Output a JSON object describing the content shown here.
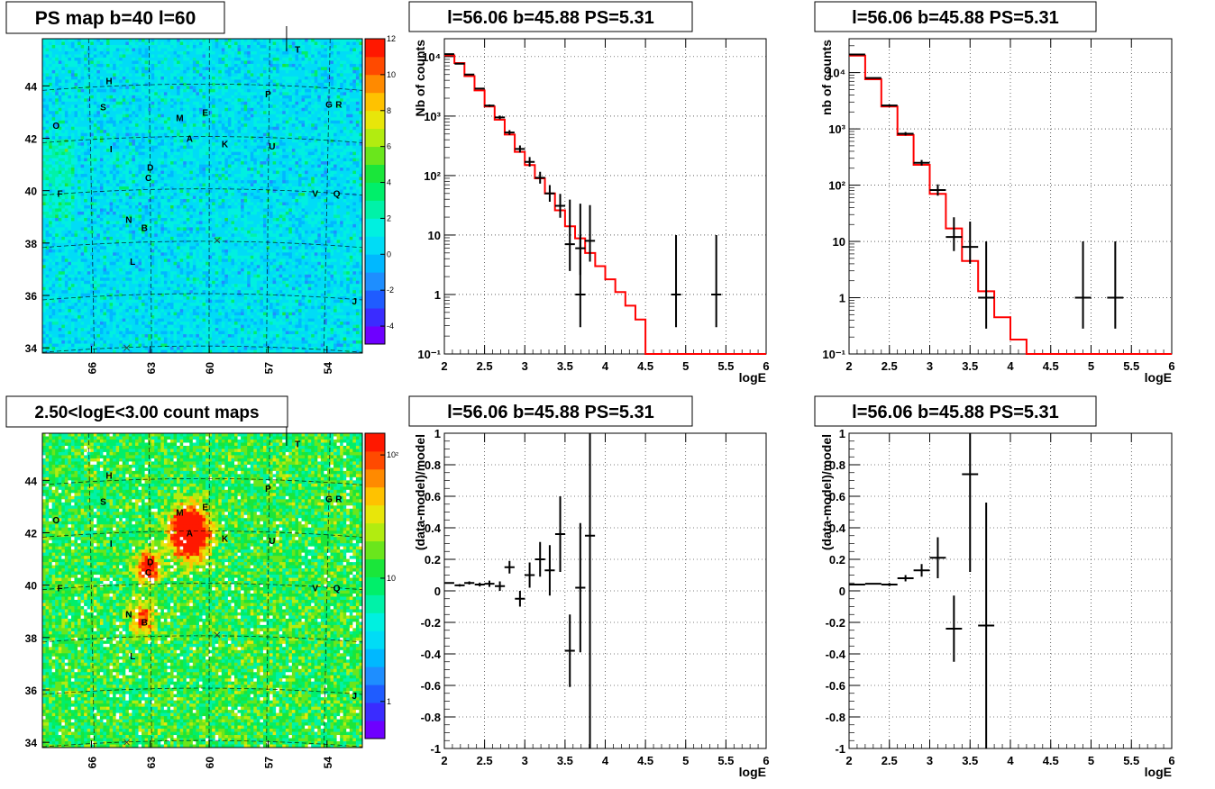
{
  "colors": {
    "map_bg": "#00e6f0",
    "frame": "#000000",
    "model_line": "#ff0000",
    "grid": "#000000",
    "palette": [
      "#6e00ff",
      "#3a2cff",
      "#1f5cff",
      "#1e8eff",
      "#00b8ff",
      "#00dcf6",
      "#00f0e0",
      "#00f2a8",
      "#00ef6a",
      "#1ae63a",
      "#6ae61c",
      "#b2ec10",
      "#e8e60a",
      "#ffc200",
      "#ff8a00",
      "#ff4a00",
      "#ff1800"
    ]
  },
  "panels": {
    "ps_map": {
      "title": "PS map b=40 l=60",
      "x_ticks": [
        "66",
        "63",
        "60",
        "57",
        "54"
      ],
      "y_ticks": [
        "44",
        "42",
        "40",
        "38",
        "36",
        "34"
      ],
      "colorbar_ticks": [
        "12",
        "10",
        "8",
        "6",
        "4",
        "2",
        "0",
        "-2",
        "-4"
      ],
      "colorbar_range": [
        -5,
        12
      ]
    },
    "count_map": {
      "title": "2.50<logE<3.00 count maps",
      "x_ticks": [
        "66",
        "63",
        "60",
        "57",
        "54"
      ],
      "y_ticks": [
        "44",
        "42",
        "40",
        "38",
        "36",
        "34"
      ],
      "colorbar_ticks": [
        "10²",
        "10",
        "1"
      ]
    },
    "map_sources": [
      {
        "label": "T",
        "l": 55.5,
        "b": 45.4
      },
      {
        "label": "H",
        "l": 65.1,
        "b": 44.2
      },
      {
        "label": "P",
        "l": 57.0,
        "b": 43.7
      },
      {
        "label": "S",
        "l": 65.4,
        "b": 43.2
      },
      {
        "label": "G",
        "l": 53.9,
        "b": 43.3
      },
      {
        "label": "R",
        "l": 53.4,
        "b": 43.3
      },
      {
        "label": "M",
        "l": 61.5,
        "b": 42.8
      },
      {
        "label": "E",
        "l": 60.2,
        "b": 43.0
      },
      {
        "label": "O",
        "l": 67.8,
        "b": 42.5
      },
      {
        "label": "A",
        "l": 61.0,
        "b": 42.0
      },
      {
        "label": "K",
        "l": 59.2,
        "b": 41.8
      },
      {
        "label": "U",
        "l": 56.8,
        "b": 41.7
      },
      {
        "label": "I",
        "l": 65.0,
        "b": 41.6
      },
      {
        "label": "D",
        "l": 63.0,
        "b": 40.9
      },
      {
        "label": "C",
        "l": 63.1,
        "b": 40.5
      },
      {
        "label": "F",
        "l": 67.6,
        "b": 39.9
      },
      {
        "label": "V",
        "l": 54.6,
        "b": 39.9
      },
      {
        "label": "Q",
        "l": 53.5,
        "b": 39.9
      },
      {
        "label": "N",
        "l": 64.1,
        "b": 38.9
      },
      {
        "label": "B",
        "l": 63.3,
        "b": 38.6
      },
      {
        "label": "L",
        "l": 63.9,
        "b": 37.3
      },
      {
        "label": "J",
        "l": 52.6,
        "b": 35.8
      }
    ],
    "bright_blobs": [
      {
        "l": 61.0,
        "b": 42.0,
        "amp": 1.0,
        "r": 0.9
      },
      {
        "l": 63.1,
        "b": 40.7,
        "amp": 0.55,
        "r": 0.6
      },
      {
        "l": 63.4,
        "b": 38.7,
        "amp": 0.45,
        "r": 0.6
      }
    ],
    "spectrum_1": {
      "title": "l=56.06 b=45.88 PS=5.31",
      "xlabel": "logE",
      "ylabel": "Nb of counts"
    },
    "spectrum_2": {
      "title": "l=56.06 b=45.88 PS=5.31",
      "xlabel": "logE",
      "ylabel": "nb of counts"
    },
    "residual_1": {
      "title": "l=56.06 b=45.88 PS=5.31",
      "xlabel": "logE",
      "ylabel": "(data-model)/model"
    },
    "residual_2": {
      "title": "l=56.06 b=45.88 PS=5.31",
      "xlabel": "logE",
      "ylabel": "(data-model)/model"
    }
  },
  "chart_data": [
    {
      "type": "heatmap",
      "title": "PS map b=40 l=60",
      "xlim": [
        68.5,
        52.2
      ],
      "ylim": [
        33.8,
        45.8
      ],
      "x_ticks": [
        66,
        63,
        60,
        57,
        54
      ],
      "y_ticks": [
        34,
        36,
        38,
        40,
        42,
        44
      ],
      "z_range": [
        -5,
        12
      ]
    },
    {
      "type": "heatmap",
      "title": "2.50<logE<3.00 count maps",
      "xlim": [
        68.5,
        52.2
      ],
      "ylim": [
        33.8,
        45.8
      ],
      "z_scale": "log",
      "z_range": [
        0.5,
        150
      ]
    },
    {
      "type": "line",
      "title": "l=56.06 b=45.88 PS=5.31",
      "xlabel": "logE",
      "ylabel": "Nb of counts",
      "yscale": "log",
      "xlim": [
        2,
        6
      ],
      "ylim": [
        0.1,
        20000
      ],
      "x_ticks": [
        2,
        2.5,
        3,
        3.5,
        4,
        4.5,
        5,
        5.5,
        6
      ],
      "y_ticks": [
        {
          "v": 0.1,
          "t": "10⁻¹"
        },
        {
          "v": 1,
          "t": "1"
        },
        {
          "v": 10,
          "t": "10"
        },
        {
          "v": 100,
          "t": "10²"
        },
        {
          "v": 1000,
          "t": "10³"
        },
        {
          "v": 10000,
          "t": "10⁴"
        }
      ],
      "bin_width": 0.125,
      "model_bins": [
        [
          2.0,
          10500
        ],
        [
          2.125,
          7800
        ],
        [
          2.25,
          4700
        ],
        [
          2.375,
          2700
        ],
        [
          2.5,
          1450
        ],
        [
          2.625,
          870
        ],
        [
          2.75,
          490
        ],
        [
          2.875,
          250
        ],
        [
          3.0,
          150
        ],
        [
          3.125,
          90
        ],
        [
          3.25,
          50
        ],
        [
          3.375,
          26
        ],
        [
          3.5,
          14
        ],
        [
          3.625,
          8.8
        ],
        [
          3.75,
          5
        ],
        [
          3.875,
          3
        ],
        [
          4.0,
          1.8
        ],
        [
          4.125,
          1.1
        ],
        [
          4.25,
          0.65
        ],
        [
          4.375,
          0.38
        ],
        [
          4.5,
          0.1
        ],
        [
          4.625,
          0.1
        ],
        [
          4.75,
          0.1
        ],
        [
          4.875,
          0.1
        ],
        [
          5.0,
          0.1
        ],
        [
          5.125,
          0.1
        ],
        [
          5.25,
          0.1
        ],
        [
          5.375,
          0.1
        ],
        [
          5.5,
          0.1
        ],
        [
          5.625,
          0.1
        ],
        [
          5.75,
          0.1
        ],
        [
          5.875,
          0.1
        ]
      ],
      "data_points": [
        [
          2.06,
          11000,
          0.01,
          0.01
        ],
        [
          2.19,
          7600,
          0.01,
          0.01
        ],
        [
          2.31,
          5000,
          0.01,
          0.01
        ],
        [
          2.44,
          2900,
          0.01,
          0.01
        ],
        [
          2.56,
          1500,
          0.02,
          0.02
        ],
        [
          2.69,
          950,
          0.03,
          0.03
        ],
        [
          2.81,
          530,
          0.04,
          0.04
        ],
        [
          2.94,
          280,
          0.06,
          0.06
        ],
        [
          3.06,
          170,
          0.08,
          0.08
        ],
        [
          3.19,
          92,
          0.1,
          0.1
        ],
        [
          3.31,
          50,
          0.14,
          0.14
        ],
        [
          3.44,
          31,
          0.2,
          0.2
        ],
        [
          3.56,
          7,
          0.45,
          0.75
        ],
        [
          3.69,
          6,
          0.45,
          0.75
        ],
        [
          3.81,
          8,
          0.35,
          0.6
        ],
        [
          3.69,
          1,
          0.55,
          1.0
        ],
        [
          4.88,
          1,
          0.55,
          1.0
        ],
        [
          5.38,
          1,
          0.55,
          1.0
        ]
      ]
    },
    {
      "type": "line",
      "title": "l=56.06 b=45.88 PS=5.31",
      "xlabel": "logE",
      "ylabel": "nb of counts",
      "yscale": "log",
      "xlim": [
        2,
        6
      ],
      "ylim": [
        0.1,
        40000
      ],
      "x_ticks": [
        2,
        2.5,
        3,
        3.5,
        4,
        4.5,
        5,
        5.5,
        6
      ],
      "y_ticks": [
        {
          "v": 0.1,
          "t": "10⁻¹"
        },
        {
          "v": 1,
          "t": "1"
        },
        {
          "v": 10,
          "t": "10"
        },
        {
          "v": 100,
          "t": "10²"
        },
        {
          "v": 1000,
          "t": "10³"
        },
        {
          "v": 10000,
          "t": "10⁴"
        }
      ],
      "bin_width": 0.2,
      "model_bins": [
        [
          2.0,
          20000
        ],
        [
          2.2,
          7600
        ],
        [
          2.4,
          2500
        ],
        [
          2.6,
          780
        ],
        [
          2.8,
          230
        ],
        [
          3.0,
          70
        ],
        [
          3.2,
          17
        ],
        [
          3.4,
          4.5
        ],
        [
          3.6,
          1.3
        ],
        [
          3.8,
          0.45
        ],
        [
          4.0,
          0.18
        ],
        [
          4.2,
          0.1
        ],
        [
          4.4,
          0.1
        ],
        [
          4.6,
          0.1
        ],
        [
          4.8,
          0.1
        ],
        [
          5.0,
          0.1
        ],
        [
          5.2,
          0.1
        ],
        [
          5.4,
          0.1
        ],
        [
          5.6,
          0.1
        ],
        [
          5.8,
          0.1
        ]
      ],
      "data_points": [
        [
          2.1,
          21000,
          0.01,
          0.01
        ],
        [
          2.3,
          8000,
          0.01,
          0.01
        ],
        [
          2.5,
          2600,
          0.02,
          0.02
        ],
        [
          2.7,
          820,
          0.03,
          0.03
        ],
        [
          2.9,
          250,
          0.05,
          0.05
        ],
        [
          3.1,
          82,
          0.1,
          0.1
        ],
        [
          3.3,
          12,
          0.25,
          0.35
        ],
        [
          3.5,
          8,
          0.3,
          0.45
        ],
        [
          3.7,
          1,
          0.55,
          1.0
        ],
        [
          4.9,
          1,
          0.55,
          1.0
        ],
        [
          5.3,
          1,
          0.55,
          1.0
        ]
      ]
    },
    {
      "type": "scatter",
      "title": "l=56.06 b=45.88 PS=5.31",
      "xlabel": "logE",
      "ylabel": "(data-model)/model",
      "xlim": [
        2,
        6
      ],
      "ylim": [
        -1,
        1
      ],
      "x_ticks": [
        2,
        2.5,
        3,
        3.5,
        4,
        4.5,
        5,
        5.5,
        6
      ],
      "y_ticks": [
        -1,
        -0.8,
        -0.6,
        -0.4,
        -0.2,
        0,
        0.2,
        0.4,
        0.6,
        0.8,
        1
      ],
      "x_half_width": 0.0625,
      "points": [
        [
          2.06,
          0.05,
          0.005
        ],
        [
          2.19,
          0.035,
          0.008
        ],
        [
          2.31,
          0.05,
          0.01
        ],
        [
          2.44,
          0.04,
          0.012
        ],
        [
          2.56,
          0.045,
          0.02
        ],
        [
          2.69,
          0.03,
          0.03
        ],
        [
          2.81,
          0.15,
          0.04
        ],
        [
          2.94,
          -0.05,
          0.05
        ],
        [
          3.06,
          0.1,
          0.08
        ],
        [
          3.19,
          0.2,
          0.11
        ],
        [
          3.31,
          0.13,
          0.16
        ],
        [
          3.44,
          0.36,
          0.24
        ],
        [
          3.56,
          -0.38,
          0.23
        ],
        [
          3.69,
          0.02,
          0.41
        ],
        [
          3.81,
          0.35,
          1.4
        ]
      ]
    },
    {
      "type": "scatter",
      "title": "l=56.06 b=45.88 PS=5.31",
      "xlabel": "logE",
      "ylabel": "(data-model)/model",
      "xlim": [
        2,
        6
      ],
      "ylim": [
        -1,
        1
      ],
      "x_ticks": [
        2,
        2.5,
        3,
        3.5,
        4,
        4.5,
        5,
        5.5,
        6
      ],
      "y_ticks": [
        -1,
        -0.8,
        -0.6,
        -0.4,
        -0.2,
        0,
        0.2,
        0.4,
        0.6,
        0.8,
        1
      ],
      "x_half_width": 0.1,
      "points": [
        [
          2.1,
          0.04,
          0.004
        ],
        [
          2.3,
          0.045,
          0.006
        ],
        [
          2.5,
          0.04,
          0.01
        ],
        [
          2.7,
          0.08,
          0.02
        ],
        [
          2.9,
          0.13,
          0.04
        ],
        [
          3.1,
          0.21,
          0.13
        ],
        [
          3.3,
          -0.24,
          0.21
        ],
        [
          3.5,
          0.74,
          0.62
        ],
        [
          3.7,
          -0.22,
          0.78
        ]
      ]
    }
  ]
}
